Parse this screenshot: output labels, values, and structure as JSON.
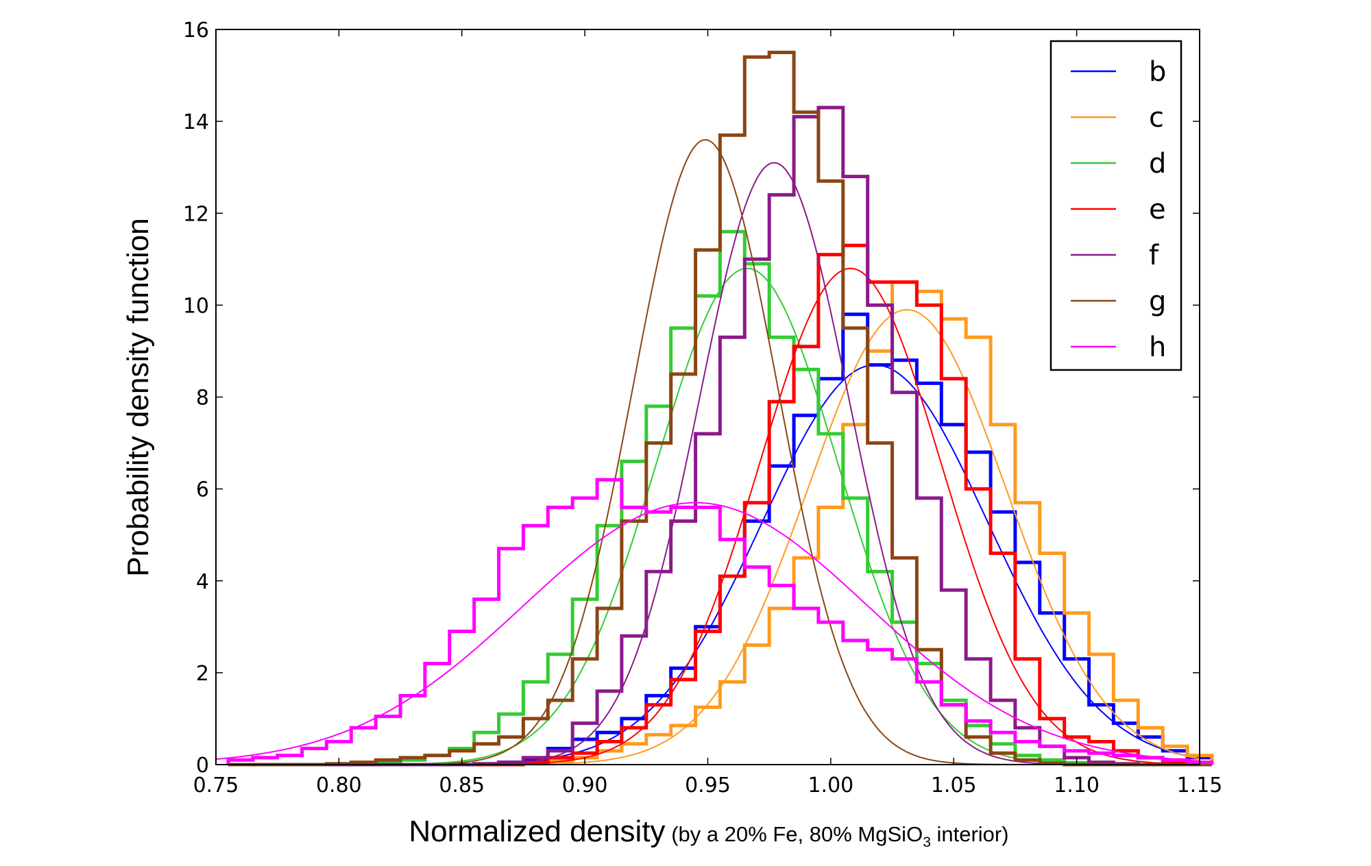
{
  "chart_data": {
    "type": "line",
    "xlabel": "Normalized density",
    "xlabel_note_prefix": "(by a 20% Fe, 80% MgSiO",
    "xlabel_note_sub": "3",
    "xlabel_note_suffix": " interior)",
    "ylabel": "Probability density function",
    "xlim": [
      0.75,
      1.15
    ],
    "ylim": [
      0,
      16
    ],
    "xticks": [
      "0.75",
      "0.80",
      "0.85",
      "0.90",
      "0.95",
      "1.00",
      "1.05",
      "1.10",
      "1.15"
    ],
    "yticks": [
      "0",
      "2",
      "4",
      "6",
      "8",
      "10",
      "12",
      "14",
      "16"
    ],
    "grid": false,
    "legend_position": "top-right",
    "series": [
      {
        "name": "b",
        "color": "#0000ff",
        "fit": {
          "mu": 1.018,
          "peak": 8.7
        },
        "hist_x": [
          0.76,
          0.77,
          0.78,
          0.79,
          0.8,
          0.81,
          0.82,
          0.83,
          0.84,
          0.85,
          0.86,
          0.87,
          0.88,
          0.89,
          0.9,
          0.91,
          0.92,
          0.93,
          0.94,
          0.95,
          0.96,
          0.97,
          0.98,
          0.99,
          1.0,
          1.01,
          1.02,
          1.03,
          1.04,
          1.05,
          1.06,
          1.07,
          1.08,
          1.09,
          1.1,
          1.11,
          1.12,
          1.13,
          1.14,
          1.15
        ],
        "hist_y": [
          0,
          0,
          0,
          0,
          0,
          0,
          0,
          0,
          0,
          0,
          0,
          0.05,
          0.1,
          0.35,
          0.55,
          0.7,
          1.0,
          1.5,
          2.1,
          3.0,
          4.1,
          5.3,
          6.5,
          7.6,
          8.4,
          9.8,
          8.7,
          8.8,
          8.3,
          7.4,
          6.8,
          5.5,
          4.4,
          3.3,
          2.3,
          1.3,
          0.9,
          0.6,
          0.3,
          0.15
        ]
      },
      {
        "name": "c",
        "color": "#ff9a1e",
        "fit": {
          "mu": 1.031,
          "peak": 9.9
        },
        "hist_x": [
          0.76,
          0.77,
          0.78,
          0.79,
          0.8,
          0.81,
          0.82,
          0.83,
          0.84,
          0.85,
          0.86,
          0.87,
          0.88,
          0.89,
          0.9,
          0.91,
          0.92,
          0.93,
          0.94,
          0.95,
          0.96,
          0.97,
          0.98,
          0.99,
          1.0,
          1.01,
          1.02,
          1.03,
          1.04,
          1.05,
          1.06,
          1.07,
          1.08,
          1.09,
          1.1,
          1.11,
          1.12,
          1.13,
          1.14,
          1.15
        ],
        "hist_y": [
          0,
          0,
          0,
          0,
          0,
          0,
          0,
          0,
          0,
          0,
          0,
          0,
          0.02,
          0.08,
          0.15,
          0.3,
          0.45,
          0.65,
          0.85,
          1.25,
          1.8,
          2.6,
          3.4,
          4.5,
          5.6,
          7.4,
          9.0,
          10.5,
          10.3,
          9.7,
          9.3,
          7.4,
          5.7,
          4.6,
          3.3,
          2.4,
          1.4,
          0.8,
          0.4,
          0.2
        ]
      },
      {
        "name": "d",
        "color": "#33cc33",
        "fit": {
          "mu": 0.966,
          "peak": 10.8
        },
        "hist_x": [
          0.76,
          0.77,
          0.78,
          0.79,
          0.8,
          0.81,
          0.82,
          0.83,
          0.84,
          0.85,
          0.86,
          0.87,
          0.88,
          0.89,
          0.9,
          0.91,
          0.92,
          0.93,
          0.94,
          0.95,
          0.96,
          0.97,
          0.98,
          0.99,
          1.0,
          1.01,
          1.02,
          1.03,
          1.04,
          1.05,
          1.06,
          1.07,
          1.08,
          1.09,
          1.1,
          1.11,
          1.12,
          1.13,
          1.14,
          1.15
        ],
        "hist_y": [
          0,
          0,
          0,
          0,
          0,
          0.02,
          0.05,
          0.1,
          0.2,
          0.35,
          0.7,
          1.1,
          1.8,
          2.4,
          3.6,
          5.2,
          6.6,
          7.8,
          9.5,
          10.2,
          11.6,
          10.9,
          9.3,
          8.6,
          7.2,
          5.8,
          4.2,
          3.1,
          2.2,
          1.4,
          0.85,
          0.45,
          0.2,
          0.1,
          0.04,
          0,
          0,
          0,
          0,
          0
        ]
      },
      {
        "name": "e",
        "color": "#ff0000",
        "fit": {
          "mu": 1.008,
          "peak": 10.8
        },
        "hist_x": [
          0.76,
          0.77,
          0.78,
          0.79,
          0.8,
          0.81,
          0.82,
          0.83,
          0.84,
          0.85,
          0.86,
          0.87,
          0.88,
          0.89,
          0.9,
          0.91,
          0.92,
          0.93,
          0.94,
          0.95,
          0.96,
          0.97,
          0.98,
          0.99,
          1.0,
          1.01,
          1.02,
          1.03,
          1.04,
          1.05,
          1.06,
          1.07,
          1.08,
          1.09,
          1.1,
          1.11,
          1.12,
          1.13,
          1.14,
          1.15
        ],
        "hist_y": [
          0,
          0,
          0,
          0,
          0,
          0,
          0,
          0,
          0,
          0,
          0,
          0,
          0.05,
          0.15,
          0.25,
          0.5,
          0.8,
          1.3,
          1.85,
          2.9,
          4.1,
          5.7,
          7.9,
          9.1,
          11.1,
          11.3,
          10.5,
          10.5,
          10.0,
          8.4,
          6.0,
          4.6,
          2.3,
          1.0,
          0.6,
          0.5,
          0.3,
          0.15,
          0.05,
          0.02
        ]
      },
      {
        "name": "f",
        "color": "#8b1a8b",
        "fit": {
          "mu": 0.977,
          "peak": 13.1
        },
        "hist_x": [
          0.76,
          0.77,
          0.78,
          0.79,
          0.8,
          0.81,
          0.82,
          0.83,
          0.84,
          0.85,
          0.86,
          0.87,
          0.88,
          0.89,
          0.9,
          0.91,
          0.92,
          0.93,
          0.94,
          0.95,
          0.96,
          0.97,
          0.98,
          0.99,
          1.0,
          1.01,
          1.02,
          1.03,
          1.04,
          1.05,
          1.06,
          1.07,
          1.08,
          1.09,
          1.1,
          1.11,
          1.12,
          1.13,
          1.14,
          1.15
        ],
        "hist_y": [
          0,
          0,
          0,
          0,
          0,
          0,
          0,
          0,
          0,
          0,
          0.02,
          0.05,
          0.15,
          0.3,
          0.9,
          1.6,
          2.8,
          4.2,
          5.3,
          7.2,
          9.3,
          11.0,
          12.4,
          14.1,
          14.3,
          12.8,
          10.0,
          8.1,
          5.8,
          3.8,
          2.3,
          1.4,
          0.8,
          0.4,
          0.15,
          0.05,
          0.02,
          0,
          0,
          0
        ]
      },
      {
        "name": "g",
        "color": "#8b4513",
        "fit": {
          "mu": 0.949,
          "peak": 13.6
        },
        "hist_x": [
          0.76,
          0.77,
          0.78,
          0.79,
          0.8,
          0.81,
          0.82,
          0.83,
          0.84,
          0.85,
          0.86,
          0.87,
          0.88,
          0.89,
          0.9,
          0.91,
          0.92,
          0.93,
          0.94,
          0.95,
          0.96,
          0.97,
          0.98,
          0.99,
          1.0,
          1.01,
          1.02,
          1.03,
          1.04,
          1.05,
          1.06,
          1.07,
          1.08,
          1.09,
          1.1,
          1.11,
          1.12,
          1.13,
          1.14,
          1.15
        ],
        "hist_y": [
          0,
          0,
          0,
          0,
          0.02,
          0.05,
          0.1,
          0.15,
          0.2,
          0.3,
          0.45,
          0.6,
          1.0,
          1.4,
          2.3,
          3.4,
          5.3,
          7.0,
          8.5,
          11.2,
          13.7,
          15.4,
          15.5,
          14.2,
          12.7,
          9.5,
          7.0,
          4.5,
          2.5,
          1.3,
          0.6,
          0.25,
          0.1,
          0.03,
          0,
          0,
          0,
          0,
          0,
          0
        ]
      },
      {
        "name": "h",
        "color": "#ff00ff",
        "fit": {
          "mu": 0.945,
          "peak": 5.7
        },
        "hist_x": [
          0.76,
          0.77,
          0.78,
          0.79,
          0.8,
          0.81,
          0.82,
          0.83,
          0.84,
          0.85,
          0.86,
          0.87,
          0.88,
          0.89,
          0.9,
          0.91,
          0.92,
          0.93,
          0.94,
          0.95,
          0.96,
          0.97,
          0.98,
          0.99,
          1.0,
          1.01,
          1.02,
          1.03,
          1.04,
          1.05,
          1.06,
          1.07,
          1.08,
          1.09,
          1.1,
          1.11,
          1.12,
          1.13,
          1.14,
          1.15
        ],
        "hist_y": [
          0.1,
          0.15,
          0.2,
          0.35,
          0.5,
          0.8,
          1.05,
          1.5,
          2.2,
          2.9,
          3.6,
          4.7,
          5.2,
          5.6,
          5.8,
          6.2,
          5.6,
          5.5,
          5.6,
          5.6,
          4.9,
          4.3,
          3.9,
          3.4,
          3.1,
          2.7,
          2.5,
          2.3,
          1.8,
          1.3,
          0.95,
          0.7,
          0.5,
          0.4,
          0.3,
          0.25,
          0.2,
          0.15,
          0.1,
          0.05
        ]
      }
    ]
  }
}
